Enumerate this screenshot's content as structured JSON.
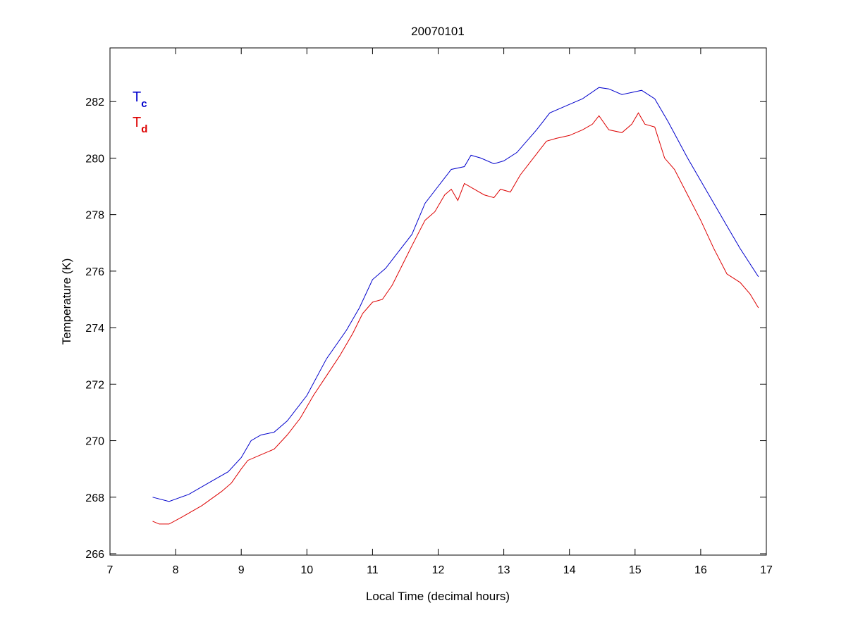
{
  "chart_data": {
    "type": "line",
    "title": "20070101",
    "xlabel": "Local Time (decimal hours)",
    "ylabel": "Temperature (K)",
    "xlim": [
      7,
      17
    ],
    "ylim": [
      265.95,
      283.9
    ],
    "xticks": [
      "7",
      "8",
      "9",
      "10",
      "11",
      "12",
      "13",
      "14",
      "15",
      "16",
      "17"
    ],
    "yticks": [
      "266",
      "268",
      "270",
      "272",
      "274",
      "276",
      "278",
      "280",
      "282"
    ],
    "grid": false,
    "legend": {
      "placement": "top-left",
      "entries": [
        {
          "main": "T",
          "sub": "c",
          "color": "#0000cc"
        },
        {
          "main": "T",
          "sub": "d",
          "color": "#dd0000"
        }
      ]
    },
    "series": [
      {
        "name": "Tc",
        "color": "#0000cc",
        "points": [
          [
            7.65,
            268.0
          ],
          [
            7.9,
            267.85
          ],
          [
            8.2,
            268.1
          ],
          [
            8.5,
            268.5
          ],
          [
            8.8,
            268.9
          ],
          [
            9.0,
            269.4
          ],
          [
            9.15,
            270.0
          ],
          [
            9.3,
            270.2
          ],
          [
            9.5,
            270.3
          ],
          [
            9.7,
            270.7
          ],
          [
            10.0,
            271.6
          ],
          [
            10.3,
            272.9
          ],
          [
            10.6,
            273.9
          ],
          [
            10.8,
            274.7
          ],
          [
            11.0,
            275.7
          ],
          [
            11.2,
            276.1
          ],
          [
            11.4,
            276.7
          ],
          [
            11.6,
            277.3
          ],
          [
            11.8,
            278.4
          ],
          [
            12.0,
            279.0
          ],
          [
            12.2,
            279.6
          ],
          [
            12.4,
            279.7
          ],
          [
            12.5,
            280.1
          ],
          [
            12.65,
            280.0
          ],
          [
            12.85,
            279.8
          ],
          [
            13.0,
            279.9
          ],
          [
            13.2,
            280.2
          ],
          [
            13.5,
            281.0
          ],
          [
            13.7,
            281.6
          ],
          [
            14.0,
            281.9
          ],
          [
            14.2,
            282.1
          ],
          [
            14.45,
            282.5
          ],
          [
            14.6,
            282.45
          ],
          [
            14.8,
            282.25
          ],
          [
            15.0,
            282.35
          ],
          [
            15.1,
            282.4
          ],
          [
            15.3,
            282.1
          ],
          [
            15.5,
            281.3
          ],
          [
            15.8,
            280.0
          ],
          [
            16.1,
            278.8
          ],
          [
            16.4,
            277.6
          ],
          [
            16.6,
            276.8
          ],
          [
            16.88,
            275.8
          ]
        ]
      },
      {
        "name": "Td",
        "color": "#dd0000",
        "points": [
          [
            7.65,
            267.15
          ],
          [
            7.75,
            267.05
          ],
          [
            7.9,
            267.05
          ],
          [
            8.1,
            267.3
          ],
          [
            8.4,
            267.7
          ],
          [
            8.7,
            268.2
          ],
          [
            8.85,
            268.5
          ],
          [
            9.0,
            269.0
          ],
          [
            9.1,
            269.3
          ],
          [
            9.3,
            269.5
          ],
          [
            9.5,
            269.7
          ],
          [
            9.7,
            270.2
          ],
          [
            9.9,
            270.8
          ],
          [
            10.1,
            271.6
          ],
          [
            10.3,
            272.3
          ],
          [
            10.5,
            273.0
          ],
          [
            10.7,
            273.8
          ],
          [
            10.85,
            274.5
          ],
          [
            11.0,
            274.9
          ],
          [
            11.15,
            275.0
          ],
          [
            11.3,
            275.5
          ],
          [
            11.45,
            276.2
          ],
          [
            11.6,
            276.9
          ],
          [
            11.8,
            277.8
          ],
          [
            11.95,
            278.1
          ],
          [
            12.1,
            278.7
          ],
          [
            12.2,
            278.9
          ],
          [
            12.3,
            278.5
          ],
          [
            12.4,
            279.1
          ],
          [
            12.55,
            278.9
          ],
          [
            12.7,
            278.7
          ],
          [
            12.85,
            278.6
          ],
          [
            12.95,
            278.9
          ],
          [
            13.1,
            278.8
          ],
          [
            13.25,
            279.4
          ],
          [
            13.45,
            280.0
          ],
          [
            13.65,
            280.6
          ],
          [
            13.8,
            280.7
          ],
          [
            14.0,
            280.8
          ],
          [
            14.2,
            281.0
          ],
          [
            14.35,
            281.2
          ],
          [
            14.45,
            281.5
          ],
          [
            14.6,
            281.0
          ],
          [
            14.8,
            280.9
          ],
          [
            14.95,
            281.2
          ],
          [
            15.05,
            281.6
          ],
          [
            15.15,
            281.2
          ],
          [
            15.3,
            281.1
          ],
          [
            15.45,
            280.0
          ],
          [
            15.6,
            279.6
          ],
          [
            15.8,
            278.7
          ],
          [
            16.0,
            277.8
          ],
          [
            16.2,
            276.8
          ],
          [
            16.4,
            275.9
          ],
          [
            16.6,
            275.6
          ],
          [
            16.75,
            275.2
          ],
          [
            16.88,
            274.7
          ]
        ]
      }
    ]
  }
}
